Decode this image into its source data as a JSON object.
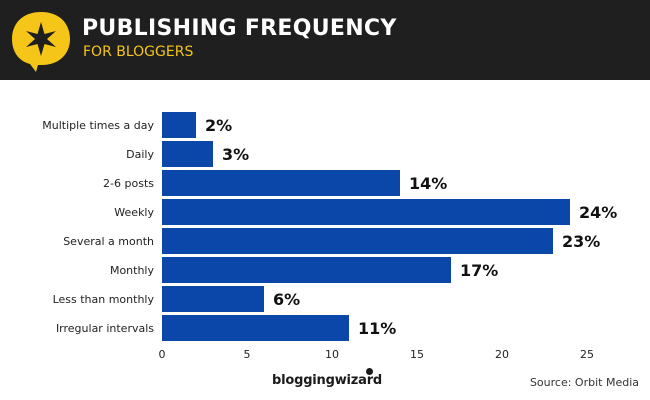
{
  "header": {
    "title": "PUBLISHING FREQUENCY",
    "subtitle": "FOR BLOGGERS",
    "badge_icon": "star-speech-bubble-icon"
  },
  "footer": {
    "brand": "bloggingwizard",
    "source": "Source: Orbit Media"
  },
  "colors": {
    "bar": "#0a47a8",
    "header_bg": "#1f1f1f",
    "accent": "#f5c518"
  },
  "chart_data": {
    "type": "bar",
    "orientation": "horizontal",
    "categories": [
      "Multiple times a day",
      "Daily",
      "2-6 posts",
      "Weekly",
      "Several a month",
      "Monthly",
      "Less than monthly",
      "Irregular intervals"
    ],
    "values": [
      2,
      3,
      14,
      24,
      23,
      17,
      6,
      11
    ],
    "value_labels": [
      "2%",
      "3%",
      "14%",
      "24%",
      "23%",
      "17%",
      "6%",
      "11%"
    ],
    "xticks": [
      "0",
      "5",
      "10",
      "15",
      "20",
      "25"
    ],
    "xlim": [
      0,
      25
    ],
    "title": "PUBLISHING FREQUENCY",
    "grid": false,
    "legend": "none"
  }
}
